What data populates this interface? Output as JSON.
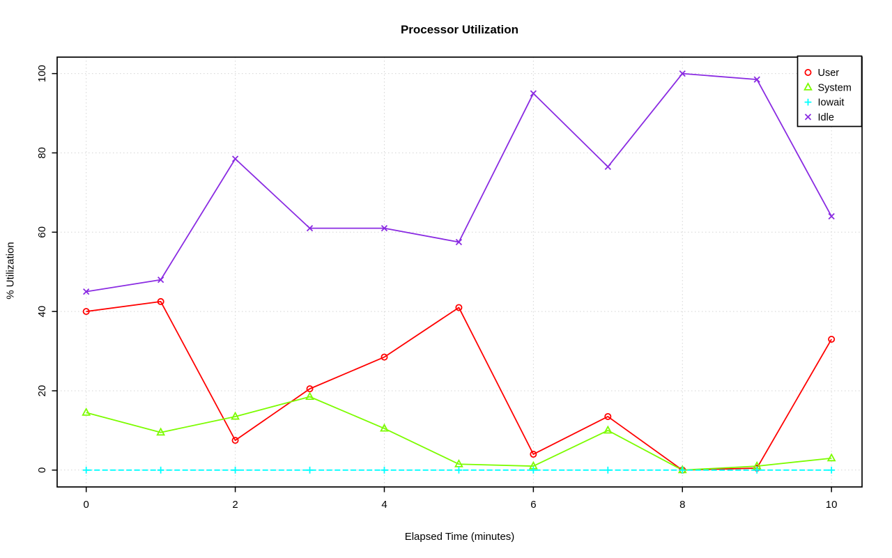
{
  "page": {
    "background": "#ffffff"
  },
  "chart_data": {
    "type": "line",
    "title": "Processor Utilization",
    "xlabel": "Elapsed Time (minutes)",
    "ylabel": "% Utilization",
    "x": [
      0,
      1,
      2,
      3,
      4,
      5,
      6,
      7,
      8,
      9,
      10
    ],
    "xticks": [
      0,
      2,
      4,
      6,
      8,
      10
    ],
    "yticks": [
      0,
      20,
      40,
      60,
      80,
      100
    ],
    "xlim": [
      -0.39,
      10.41
    ],
    "ylim": [
      -4.25,
      104.15
    ],
    "grid": "dotted",
    "grid_color": "#d4d4d4",
    "axis_color": "#000000",
    "legend_position": "top-right",
    "series": [
      {
        "name": "User",
        "color": "#ff0000",
        "marker": "open-circle",
        "line_style": "solid",
        "values": [
          40,
          42.5,
          7.5,
          20.5,
          28.5,
          41,
          4,
          13.5,
          0,
          0.5,
          33
        ]
      },
      {
        "name": "System",
        "color": "#7cfc00",
        "marker": "open-triangle",
        "line_style": "solid",
        "values": [
          14.5,
          9.5,
          13.5,
          18.5,
          10.5,
          1.5,
          1,
          10,
          0,
          1,
          3
        ]
      },
      {
        "name": "Iowait",
        "color": "#00ffff",
        "marker": "plus",
        "line_style": "dashed",
        "values": [
          0,
          0,
          0,
          0,
          0,
          0,
          0,
          0,
          0,
          0,
          0
        ]
      },
      {
        "name": "Idle",
        "color": "#8a2be2",
        "marker": "x",
        "line_style": "solid",
        "values": [
          45,
          48,
          78.5,
          61,
          61,
          57.5,
          95,
          76.5,
          100,
          98.5,
          64
        ]
      }
    ]
  }
}
